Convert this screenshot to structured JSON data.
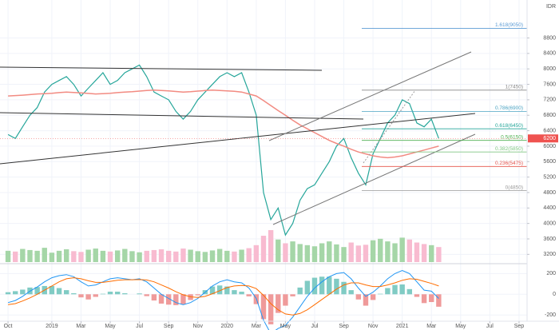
{
  "chart_data": {
    "type": "line",
    "price_axis_unit": "IDR",
    "last_price": 6200,
    "grid": true,
    "xlim": [
      -0.55,
      35.55
    ],
    "xticks": [
      {
        "value": 0,
        "label": "Oct"
      },
      {
        "value": 3,
        "label": "2019"
      },
      {
        "value": 5,
        "label": "Mar"
      },
      {
        "value": 7,
        "label": "May"
      },
      {
        "value": 9,
        "label": "Jul"
      },
      {
        "value": 11,
        "label": "Sep"
      },
      {
        "value": 13,
        "label": "Nov"
      },
      {
        "value": 15,
        "label": "2020"
      },
      {
        "value": 17,
        "label": "Mar"
      },
      {
        "value": 19,
        "label": "May"
      },
      {
        "value": 21,
        "label": "Jul"
      },
      {
        "value": 23,
        "label": "Sep"
      },
      {
        "value": 25,
        "label": "Nov"
      },
      {
        "value": 27,
        "label": "2021"
      },
      {
        "value": 29,
        "label": "Mar"
      },
      {
        "value": 31,
        "label": "May"
      },
      {
        "value": 33,
        "label": "Jul"
      },
      {
        "value": 35,
        "label": "Sep"
      }
    ],
    "ylim": [
      3000,
      9700
    ],
    "yticks": [
      3200,
      3600,
      4000,
      4400,
      4800,
      5200,
      5600,
      6000,
      6400,
      6800,
      7200,
      7600,
      8000,
      8400,
      8800
    ],
    "x": [
      0,
      0.5,
      1,
      1.5,
      2,
      2.5,
      3,
      3.5,
      4,
      4.5,
      5,
      5.5,
      6,
      6.5,
      7,
      7.5,
      8,
      8.5,
      9,
      9.5,
      10,
      10.5,
      11,
      11.5,
      12,
      12.5,
      13,
      13.5,
      14,
      14.5,
      15,
      15.5,
      16,
      16.5,
      17,
      17.5,
      18,
      18.5,
      19,
      19.5,
      20,
      20.5,
      21,
      21.5,
      22,
      22.5,
      23,
      23.5,
      24,
      24.5,
      25,
      25.5,
      26,
      26.5,
      27,
      27.5,
      28,
      28.5,
      29,
      29.5
    ],
    "series": [
      {
        "color": "#26a69a",
        "values": [
          6300,
          6200,
          6500,
          6800,
          7000,
          7400,
          7600,
          7700,
          7800,
          7600,
          7300,
          7500,
          7700,
          7900,
          7600,
          7700,
          7900,
          8000,
          8100,
          7800,
          7400,
          7300,
          7200,
          6900,
          6700,
          6900,
          7200,
          7400,
          7600,
          7800,
          7900,
          7800,
          7900,
          7400,
          6800,
          4800,
          4100,
          4400,
          3700,
          4000,
          4600,
          4900,
          5000,
          5300,
          5600,
          6000,
          6200,
          5700,
          5300,
          5000,
          5800,
          6200,
          6600,
          6800,
          7200,
          7100,
          6600,
          6500,
          6700,
          6200
        ]
      },
      {
        "color": "#f28b82",
        "values": [
          7300,
          7310,
          7320,
          7335,
          7350,
          7360,
          7370,
          7385,
          7400,
          7390,
          7380,
          7365,
          7350,
          7360,
          7370,
          7385,
          7400,
          7410,
          7425,
          7440,
          7450,
          7440,
          7430,
          7415,
          7400,
          7410,
          7425,
          7440,
          7450,
          7440,
          7430,
          7420,
          7400,
          7350,
          7300,
          7180,
          7050,
          6920,
          6800,
          6670,
          6550,
          6450,
          6350,
          6250,
          6150,
          6070,
          6000,
          5920,
          5850,
          5800,
          5750,
          5720,
          5700,
          5720,
          5750,
          5800,
          5850,
          5900,
          5950,
          6000
        ]
      }
    ],
    "fib_levels": [
      {
        "label": "1.618(9050)",
        "value": 9050,
        "color": "#5b9bd5"
      },
      {
        "label": "1(7450)",
        "value": 7450,
        "color": "#888888"
      },
      {
        "label": "0.786(6900)",
        "value": 6900,
        "color": "#4ba3c3"
      },
      {
        "label": "0.618(6450)",
        "value": 6450,
        "color": "#26a69a"
      },
      {
        "label": "0.5(6150)",
        "value": 6150,
        "color": "#4caf50"
      },
      {
        "label": "0.382(5850)",
        "value": 5850,
        "color": "#81c784"
      },
      {
        "label": "0.236(5475)",
        "value": 5475,
        "color": "#e5534b"
      },
      {
        "label": "0(4850)",
        "value": 4850,
        "color": "#999999"
      }
    ],
    "volume": {
      "colors": [
        "#a5d6a7",
        "#f8bbd0"
      ],
      "values": [
        30,
        28,
        35,
        32,
        30,
        38,
        25,
        30,
        34,
        29,
        27,
        33,
        36,
        30,
        28,
        31,
        35,
        29,
        26,
        30,
        32,
        34,
        30,
        28,
        36,
        33,
        29,
        27,
        31,
        35,
        30,
        28,
        33,
        37,
        45,
        70,
        85,
        60,
        50,
        55,
        48,
        45,
        42,
        50,
        55,
        47,
        40,
        52,
        44,
        46,
        58,
        62,
        55,
        50,
        65,
        60,
        52,
        48,
        45,
        40
      ]
    },
    "macd": {
      "ylim": [
        -260,
        280
      ],
      "yticks": [
        -200,
        0,
        200
      ],
      "histogram_colors": [
        "#80cbc4",
        "#ef9a9a"
      ],
      "histogram": [
        20,
        30,
        45,
        65,
        70,
        80,
        80,
        60,
        40,
        10,
        -30,
        -50,
        -25,
        5,
        25,
        25,
        10,
        0,
        8,
        -18,
        -60,
        -90,
        -100,
        -105,
        -95,
        -55,
        -10,
        40,
        75,
        85,
        75,
        40,
        25,
        -20,
        -95,
        -240,
        -290,
        -180,
        -110,
        -20,
        65,
        130,
        160,
        170,
        170,
        150,
        120,
        40,
        -50,
        -110,
        -55,
        5,
        60,
        90,
        95,
        50,
        -25,
        -85,
        -75,
        -120
      ],
      "series": [
        {
          "color": "#2196f3",
          "values": [
            -80,
            -60,
            -20,
            30,
            70,
            120,
            160,
            180,
            190,
            170,
            120,
            80,
            90,
            120,
            150,
            160,
            150,
            140,
            150,
            120,
            60,
            0,
            -40,
            -80,
            -100,
            -80,
            -40,
            20,
            80,
            120,
            140,
            120,
            110,
            60,
            -40,
            -250,
            -380,
            -330,
            -300,
            -220,
            -120,
            -20,
            60,
            120,
            170,
            200,
            210,
            150,
            60,
            -20,
            20,
            80,
            150,
            200,
            230,
            200,
            120,
            40,
            30,
            -40
          ]
        },
        {
          "color": "#ff6d00",
          "values": [
            -100,
            -90,
            -65,
            -35,
            0,
            40,
            80,
            120,
            150,
            160,
            150,
            130,
            115,
            115,
            125,
            135,
            140,
            140,
            142,
            138,
            120,
            90,
            60,
            25,
            -5,
            -25,
            -30,
            -20,
            5,
            35,
            65,
            80,
            85,
            80,
            55,
            -10,
            -90,
            -150,
            -190,
            -200,
            -185,
            -150,
            -100,
            -50,
            0,
            50,
            90,
            110,
            110,
            90,
            75,
            75,
            90,
            110,
            135,
            150,
            145,
            125,
            105,
            80
          ]
        }
      ]
    }
  }
}
